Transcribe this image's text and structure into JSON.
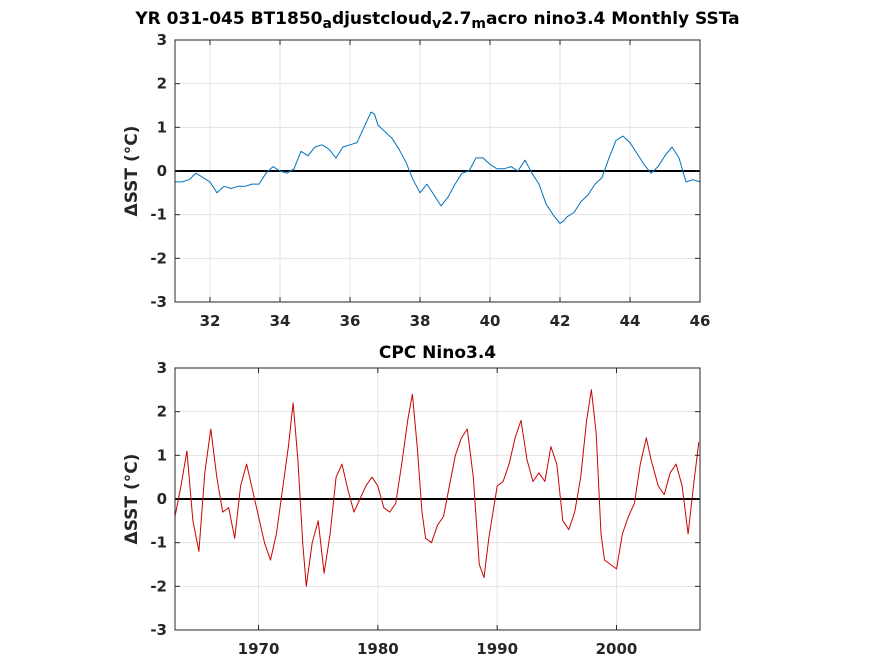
{
  "colors": {
    "model_series": "#0072bd",
    "observed_series": "#cc0000",
    "zero_line": "#000000"
  },
  "chart_data": [
    {
      "type": "line",
      "title": {
        "parts": [
          {
            "text": "YR 031-045 BT1850",
            "sub": false
          },
          {
            "text": "a",
            "sub": true
          },
          {
            "text": "djustcloud",
            "sub": false
          },
          {
            "text": "v",
            "sub": true
          },
          {
            "text": "2.7",
            "sub": false
          },
          {
            "text": "m",
            "sub": true
          },
          {
            "text": "acro nino3.4 Monthly SSTa",
            "sub": false
          }
        ]
      },
      "ylabel": "ΔSST (°C)",
      "xlim": [
        31,
        46
      ],
      "ylim": [
        -3,
        3
      ],
      "xticks": [
        32,
        34,
        36,
        38,
        40,
        42,
        44,
        46
      ],
      "yticks": [
        -3,
        -2,
        -1,
        0,
        1,
        2,
        3
      ],
      "grid": true,
      "zero_line": true,
      "series": [
        {
          "color": "#0072bd",
          "x": [
            31.0,
            31.2,
            31.4,
            31.6,
            31.8,
            32.0,
            32.2,
            32.4,
            32.6,
            32.8,
            33.0,
            33.2,
            33.4,
            33.6,
            33.8,
            34.0,
            34.2,
            34.4,
            34.6,
            34.8,
            35.0,
            35.2,
            35.4,
            35.6,
            35.8,
            36.0,
            36.2,
            36.4,
            36.6,
            36.7,
            36.8,
            37.0,
            37.2,
            37.4,
            37.6,
            37.8,
            38.0,
            38.2,
            38.4,
            38.6,
            38.8,
            39.0,
            39.2,
            39.4,
            39.6,
            39.8,
            40.0,
            40.2,
            40.4,
            40.6,
            40.8,
            41.0,
            41.2,
            41.4,
            41.6,
            41.8,
            42.0,
            42.1,
            42.2,
            42.4,
            42.6,
            42.8,
            43.0,
            43.2,
            43.4,
            43.6,
            43.8,
            44.0,
            44.2,
            44.4,
            44.6,
            44.8,
            45.0,
            45.2,
            45.4,
            45.6,
            45.8,
            46.0
          ],
          "y": [
            -0.25,
            -0.25,
            -0.2,
            -0.05,
            -0.15,
            -0.25,
            -0.5,
            -0.35,
            -0.4,
            -0.35,
            -0.35,
            -0.3,
            -0.3,
            -0.05,
            0.1,
            0.0,
            -0.05,
            0.05,
            0.45,
            0.35,
            0.55,
            0.6,
            0.5,
            0.3,
            0.55,
            0.6,
            0.65,
            1.0,
            1.35,
            1.3,
            1.05,
            0.9,
            0.75,
            0.5,
            0.2,
            -0.2,
            -0.5,
            -0.3,
            -0.55,
            -0.8,
            -0.6,
            -0.3,
            -0.05,
            0.0,
            0.3,
            0.3,
            0.15,
            0.05,
            0.05,
            0.1,
            0.0,
            0.25,
            -0.05,
            -0.3,
            -0.75,
            -1.0,
            -1.2,
            -1.15,
            -1.05,
            -0.95,
            -0.7,
            -0.55,
            -0.3,
            -0.15,
            0.3,
            0.7,
            0.8,
            0.65,
            0.4,
            0.15,
            -0.05,
            0.1,
            0.35,
            0.55,
            0.3,
            -0.25,
            -0.2,
            -0.25
          ]
        }
      ]
    },
    {
      "type": "line",
      "title": {
        "parts": [
          {
            "text": "CPC Nino3.4",
            "sub": false
          }
        ]
      },
      "ylabel": "ΔSST (°C)",
      "xlim": [
        1963,
        2007
      ],
      "ylim": [
        -3,
        3
      ],
      "xticks": [
        1970,
        1980,
        1990,
        2000
      ],
      "yticks": [
        -3,
        -2,
        -1,
        0,
        1,
        2,
        3
      ],
      "grid": true,
      "zero_line": true,
      "series": [
        {
          "color": "#cc0000",
          "x": [
            1963.0,
            1963.5,
            1964.0,
            1964.5,
            1965.0,
            1965.5,
            1966.0,
            1966.5,
            1967.0,
            1967.5,
            1968.0,
            1968.5,
            1969.0,
            1969.5,
            1970.0,
            1970.5,
            1971.0,
            1971.5,
            1972.0,
            1972.5,
            1972.9,
            1973.3,
            1973.7,
            1974.0,
            1974.5,
            1975.0,
            1975.5,
            1976.0,
            1976.5,
            1977.0,
            1977.5,
            1978.0,
            1978.5,
            1979.0,
            1979.5,
            1980.0,
            1980.5,
            1981.0,
            1981.5,
            1982.0,
            1982.5,
            1982.9,
            1983.3,
            1983.7,
            1984.0,
            1984.5,
            1985.0,
            1985.5,
            1986.0,
            1986.5,
            1987.0,
            1987.5,
            1988.0,
            1988.5,
            1988.9,
            1989.3,
            1990.0,
            1990.5,
            1991.0,
            1991.5,
            1992.0,
            1992.5,
            1993.0,
            1993.5,
            1994.0,
            1994.5,
            1995.0,
            1995.5,
            1996.0,
            1996.5,
            1997.0,
            1997.5,
            1997.9,
            1998.3,
            1998.7,
            1999.0,
            1999.5,
            2000.0,
            2000.5,
            2001.0,
            2001.5,
            2002.0,
            2002.5,
            2002.9,
            2003.5,
            2004.0,
            2004.5,
            2005.0,
            2005.5,
            2006.0,
            2006.5,
            2006.9
          ],
          "y": [
            -0.4,
            0.3,
            1.1,
            -0.5,
            -1.2,
            0.6,
            1.6,
            0.5,
            -0.3,
            -0.2,
            -0.9,
            0.3,
            0.8,
            0.2,
            -0.4,
            -1.0,
            -1.4,
            -0.8,
            0.2,
            1.2,
            2.2,
            0.9,
            -1.0,
            -2.0,
            -1.0,
            -0.5,
            -1.7,
            -0.8,
            0.5,
            0.8,
            0.2,
            -0.3,
            0.0,
            0.3,
            0.5,
            0.3,
            -0.2,
            -0.3,
            -0.1,
            0.8,
            1.8,
            2.4,
            1.2,
            -0.3,
            -0.9,
            -1.0,
            -0.6,
            -0.4,
            0.3,
            1.0,
            1.4,
            1.6,
            0.5,
            -1.5,
            -1.8,
            -0.9,
            0.3,
            0.4,
            0.8,
            1.4,
            1.8,
            0.9,
            0.4,
            0.6,
            0.4,
            1.2,
            0.8,
            -0.5,
            -0.7,
            -0.3,
            0.5,
            1.8,
            2.5,
            1.5,
            -0.8,
            -1.4,
            -1.5,
            -1.6,
            -0.8,
            -0.4,
            -0.1,
            0.8,
            1.4,
            0.9,
            0.3,
            0.1,
            0.6,
            0.8,
            0.3,
            -0.8,
            0.4,
            1.3
          ]
        }
      ]
    }
  ]
}
